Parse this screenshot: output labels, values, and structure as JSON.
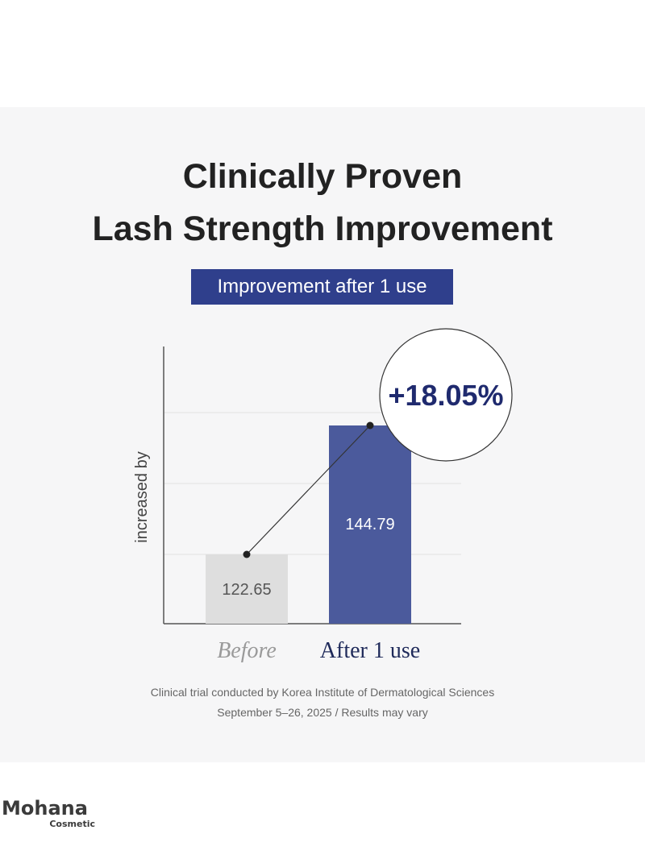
{
  "title_line1": "Clinically Proven",
  "title_line2": "Lash Strength Improvement",
  "badge": "Improvement after 1 use",
  "chart_data": {
    "type": "bar",
    "categories": [
      "Before",
      "After 1 use"
    ],
    "values": [
      122.65,
      144.79
    ],
    "value_labels": [
      "122.65",
      "144.79"
    ],
    "ylabel": "increased by",
    "callout": "+18.05%",
    "grid": true,
    "colors": [
      "#dedede",
      "#4b5a9c"
    ]
  },
  "caption_line1": "Clinical trial conducted by Korea Institute of Dermatological Sciences",
  "caption_line2": "September 5–26, 2025 / Results may vary",
  "logo": {
    "name": "Mohana",
    "sub": "Cosmetic"
  },
  "colors": {
    "accent": "#2f3f8c",
    "bar_after": "#4b5a9c",
    "bar_before": "#dedede",
    "category_before": "#9a9a9a",
    "category_after": "#1f2a5a"
  }
}
